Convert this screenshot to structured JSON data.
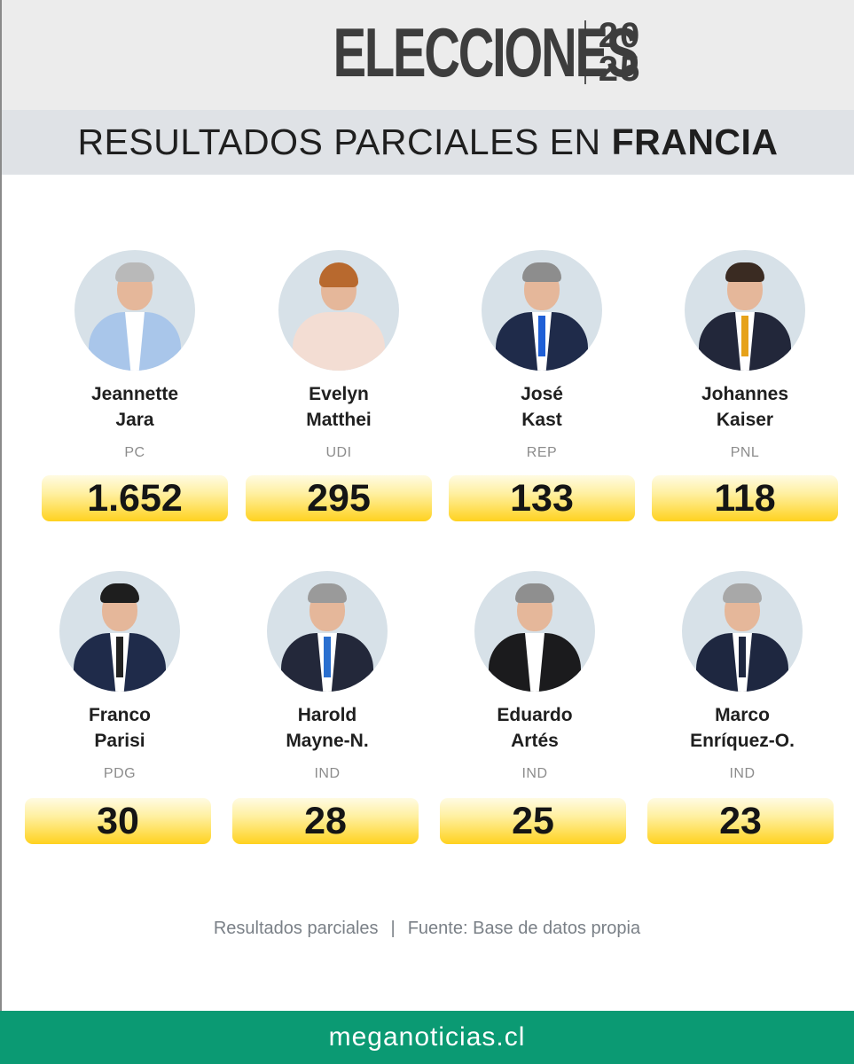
{
  "header": {
    "brand": "ELECCIONES",
    "year_top": "20",
    "year_bottom": "25",
    "subtitle_prefix": "RESULTADOS PARCIALES EN",
    "subtitle_country": "FRANCIA"
  },
  "candidates": [
    {
      "first": "Jeannette",
      "last": "Jara",
      "party": "PC",
      "votes": "1.652"
    },
    {
      "first": "Evelyn",
      "last": "Matthei",
      "party": "UDI",
      "votes": "295"
    },
    {
      "first": "José",
      "last": "Kast",
      "party": "REP",
      "votes": "133"
    },
    {
      "first": "Johannes",
      "last": "Kaiser",
      "party": "PNL",
      "votes": "118"
    },
    {
      "first": "Franco",
      "last": "Parisi",
      "party": "PDG",
      "votes": "30"
    },
    {
      "first": "Harold",
      "last": "Mayne-N.",
      "party": "IND",
      "votes": "28"
    },
    {
      "first": "Eduardo",
      "last": "Artés",
      "party": "IND",
      "votes": "25"
    },
    {
      "first": "Marco",
      "last": "Enríquez-O.",
      "party": "IND",
      "votes": "23"
    }
  ],
  "footer": {
    "note_left": "Resultados parciales",
    "separator": "|",
    "note_right": "Fuente: Base de datos propia",
    "site": "meganoticias.cl"
  },
  "colors": {
    "bar_top": "#fffbe3",
    "bar_bottom": "#ffd21f",
    "footer_bar": "#0b9a73",
    "avatar_bg": "#d7e1e8"
  }
}
